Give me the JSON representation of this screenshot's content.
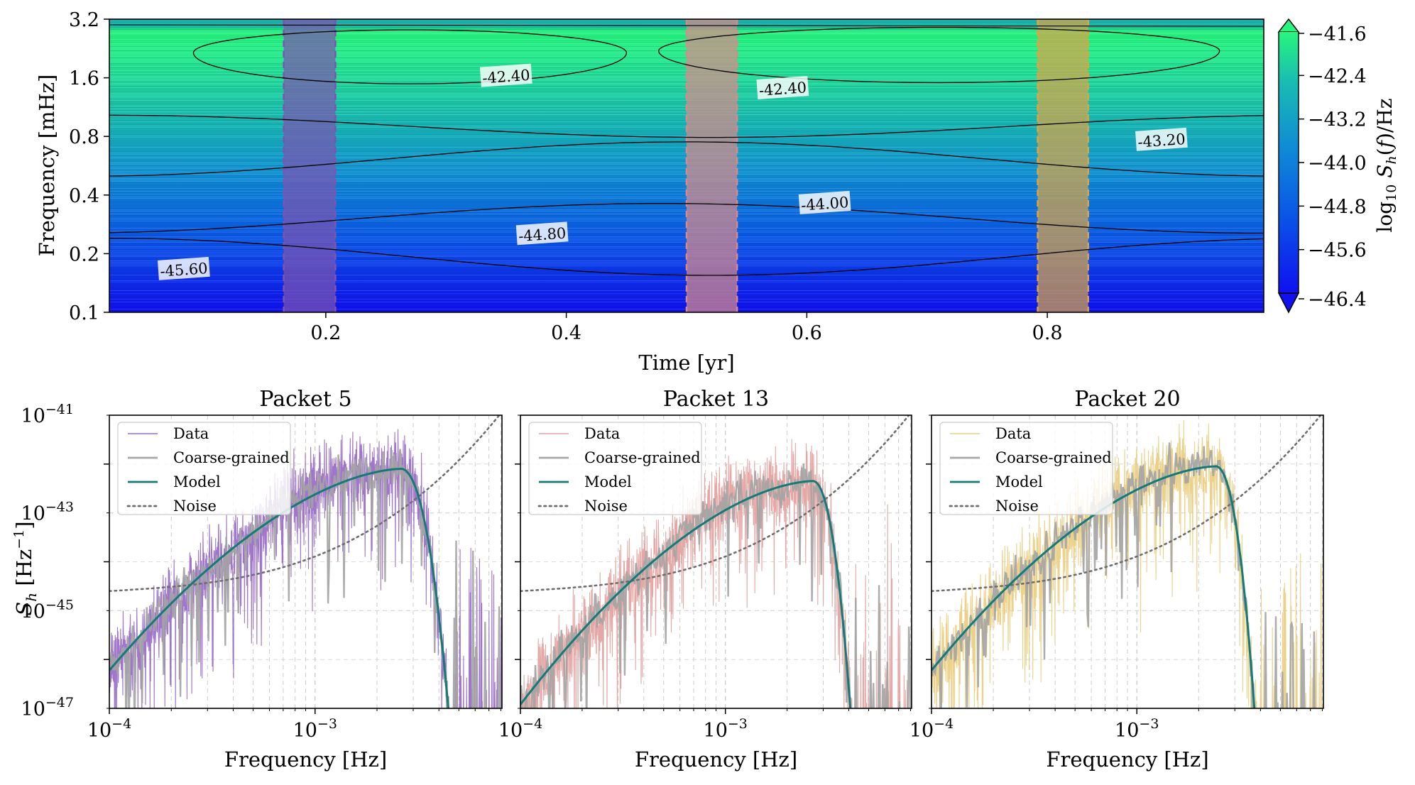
{
  "chart_data": [
    {
      "type": "heatmap",
      "title": "",
      "xlabel": "Time [yr]",
      "ylabel": "Frequency [mHz]",
      "xlim": [
        0.02,
        0.98
      ],
      "y_scale": "log2",
      "ylim_mHz": [
        0.1,
        3.2
      ],
      "x_ticks": [
        "0.2",
        "0.4",
        "0.6",
        "0.8"
      ],
      "y_ticks": [
        "0.1",
        "0.2",
        "0.4",
        "0.8",
        "1.6",
        "3.2"
      ],
      "colorbar": {
        "label": "log10 Sh(f)/Hz",
        "ticks": [
          "-41.6",
          "-42.4",
          "-43.2",
          "-44.0",
          "-44.8",
          "-45.6",
          "-46.4"
        ],
        "range": [
          -46.4,
          -41.6
        ],
        "colors": [
          "#1010f0",
          "#0a56e6",
          "#0f8ad6",
          "#19bab4",
          "#24e690",
          "#27f57e"
        ]
      },
      "contour_levels": [
        "-42.40",
        "-43.20",
        "-44.00",
        "-44.80",
        "-45.60"
      ],
      "contour_labels": [
        {
          "text": "-42.40",
          "x": 0.35,
          "f_mHz": 1.62
        },
        {
          "text": "-42.40",
          "x": 0.58,
          "f_mHz": 1.4
        },
        {
          "text": "-43.20",
          "x": 0.895,
          "f_mHz": 0.76
        },
        {
          "text": "-44.00",
          "x": 0.615,
          "f_mHz": 0.36
        },
        {
          "text": "-44.80",
          "x": 0.38,
          "f_mHz": 0.25
        },
        {
          "text": "-45.60",
          "x": 0.082,
          "f_mHz": 0.165
        }
      ],
      "highlighted_windows": [
        {
          "packet": 5,
          "t0": 0.165,
          "t1": 0.208,
          "color": "#7b55b0"
        },
        {
          "packet": 13,
          "t0": 0.5,
          "t1": 0.542,
          "color": "#d88a8a"
        },
        {
          "packet": 20,
          "t0": 0.792,
          "t1": 0.834,
          "color": "#d8a548"
        }
      ]
    },
    {
      "type": "line",
      "title": "Packet 5",
      "xlabel": "Frequency [Hz]",
      "ylabel": "Sh [Hz^-1]",
      "x_scale": "log",
      "y_scale": "log",
      "xlim": [
        0.0001,
        0.0081
      ],
      "ylim": [
        1e-47,
        1e-41
      ],
      "x_ticks": [
        "10^-4",
        "10^-3"
      ],
      "y_ticks": [
        "10^-47",
        "10^-45",
        "10^-43",
        "10^-41"
      ],
      "data_color": "#9a6fc6",
      "model_peak": {
        "f": 0.00265,
        "sh": 8e-43
      },
      "model_cutoff_f": 0.0047,
      "model_at_fmin": 6e-47,
      "legend": [
        "Data",
        "Coarse-grained",
        "Model",
        "Noise"
      ],
      "series": [
        {
          "name": "Data",
          "color": "#9a6fc6",
          "style": "solid-noisy"
        },
        {
          "name": "Coarse-grained",
          "color": "#a8a8a8",
          "style": "solid-noisy"
        },
        {
          "name": "Model",
          "color": "#147a78",
          "style": "solid"
        },
        {
          "name": "Noise",
          "color": "#6e6e6e",
          "style": "dotted"
        }
      ]
    },
    {
      "type": "line",
      "title": "Packet 13",
      "xlabel": "Frequency [Hz]",
      "ylabel": "",
      "x_scale": "log",
      "y_scale": "log",
      "xlim": [
        0.0001,
        0.0081
      ],
      "ylim": [
        1e-47,
        1e-41
      ],
      "x_ticks": [
        "10^-4",
        "10^-3"
      ],
      "y_ticks": [
        "10^-47",
        "10^-45",
        "10^-43",
        "10^-41"
      ],
      "data_color": "#e3a3a1",
      "model_peak": {
        "f": 0.0027,
        "sh": 4.5e-43
      },
      "model_cutoff_f": 0.0043,
      "model_at_fmin": 1.2e-47,
      "legend": [
        "Data",
        "Coarse-grained",
        "Model",
        "Noise"
      ],
      "series": [
        {
          "name": "Data",
          "color": "#e3a3a1",
          "style": "solid-noisy"
        },
        {
          "name": "Coarse-grained",
          "color": "#a8a8a8",
          "style": "solid-noisy"
        },
        {
          "name": "Model",
          "color": "#147a78",
          "style": "solid"
        },
        {
          "name": "Noise",
          "color": "#6e6e6e",
          "style": "dotted"
        }
      ]
    },
    {
      "type": "line",
      "title": "Packet 20",
      "xlabel": "Frequency [Hz]",
      "ylabel": "",
      "x_scale": "log",
      "y_scale": "log",
      "xlim": [
        0.0001,
        0.0081
      ],
      "ylim": [
        1e-47,
        1e-41
      ],
      "x_ticks": [
        "10^-4",
        "10^-3"
      ],
      "y_ticks": [
        "10^-47",
        "10^-45",
        "10^-43",
        "10^-41"
      ],
      "data_color": "#ebcf84",
      "model_peak": {
        "f": 0.00245,
        "sh": 9e-43
      },
      "model_cutoff_f": 0.0039,
      "model_at_fmin": 6e-47,
      "legend": [
        "Data",
        "Coarse-grained",
        "Model",
        "Noise"
      ],
      "series": [
        {
          "name": "Data",
          "color": "#ebcf84",
          "style": "solid-noisy"
        },
        {
          "name": "Coarse-grained",
          "color": "#a8a8a8",
          "style": "solid-noisy"
        },
        {
          "name": "Model",
          "color": "#147a78",
          "style": "solid"
        },
        {
          "name": "Noise",
          "color": "#6e6e6e",
          "style": "dotted"
        }
      ]
    }
  ]
}
